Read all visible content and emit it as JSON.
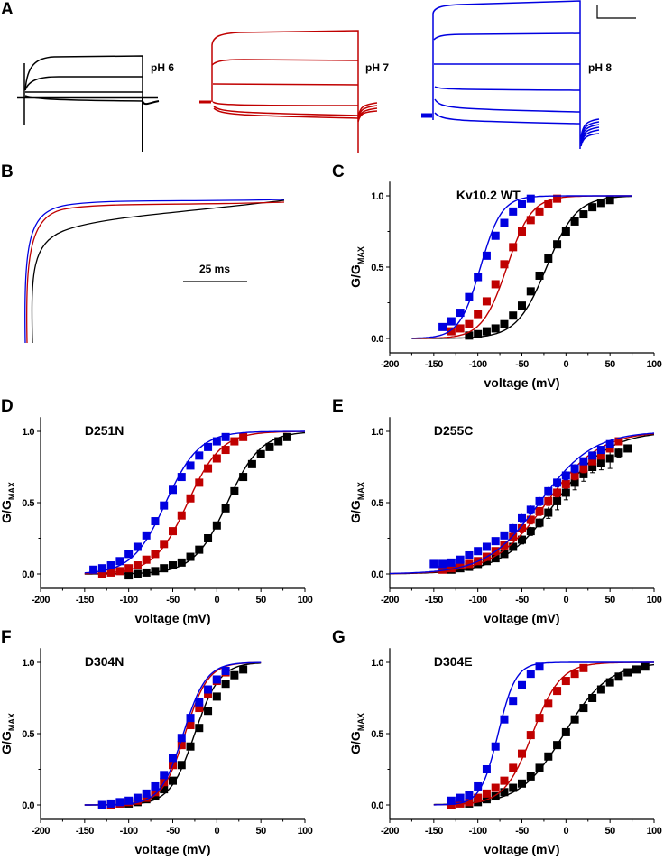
{
  "colors": {
    "pH 6": "#000000",
    "pH 7": "#c00000",
    "pH 8": "#0000e0"
  },
  "panel_a": {
    "label": "A",
    "traces": [
      {
        "label": "pH 6",
        "color": "#000000"
      },
      {
        "label": "pH 7",
        "color": "#c00000"
      },
      {
        "label": "pH 8",
        "color": "#0000e0"
      }
    ],
    "scale_bar": true
  },
  "panel_b": {
    "label": "B",
    "scale_label": "25 ms"
  },
  "chart_data": [
    {
      "panel": "C",
      "type": "scatter",
      "title": "Kv10.2 WT",
      "xlabel": "voltage (mV)",
      "ylabel": "G/GMAX",
      "xlim": [
        -200,
        100
      ],
      "ylim": [
        -0.1,
        1.1
      ],
      "xticks": [
        -200,
        -150,
        -100,
        -50,
        0,
        50,
        100
      ],
      "yticks": [
        0.0,
        0.5,
        1.0
      ],
      "fit_range": [
        -175,
        75
      ],
      "series": [
        {
          "name": "pH 6",
          "color": "#000000",
          "v_half": -22,
          "slope": 17,
          "x": [
            -110,
            -100,
            -90,
            -80,
            -70,
            -60,
            -50,
            -40,
            -30,
            -20,
            -10,
            0,
            10,
            20,
            30,
            40,
            50
          ],
          "y": [
            0.02,
            0.03,
            0.05,
            0.07,
            0.1,
            0.16,
            0.23,
            0.33,
            0.44,
            0.56,
            0.66,
            0.75,
            0.82,
            0.87,
            0.92,
            0.95,
            0.97
          ]
        },
        {
          "name": "pH 7",
          "color": "#c00000",
          "v_half": -67,
          "slope": 14,
          "x": [
            -130,
            -120,
            -110,
            -100,
            -90,
            -80,
            -70,
            -60,
            -50,
            -40,
            -30,
            -20,
            -10
          ],
          "y": [
            0.05,
            0.07,
            0.1,
            0.17,
            0.26,
            0.38,
            0.52,
            0.64,
            0.75,
            0.83,
            0.89,
            0.94,
            0.98
          ]
        },
        {
          "name": "pH 8",
          "color": "#0000e0",
          "v_half": -97,
          "slope": 12,
          "x": [
            -140,
            -130,
            -120,
            -110,
            -100,
            -90,
            -80,
            -70,
            -60,
            -50,
            -40
          ],
          "y": [
            0.08,
            0.12,
            0.18,
            0.29,
            0.43,
            0.58,
            0.72,
            0.81,
            0.89,
            0.94,
            0.98
          ]
        }
      ]
    },
    {
      "panel": "D",
      "type": "scatter",
      "title": "D251N",
      "xlabel": "voltage (mV)",
      "ylabel": "G/GMAX",
      "xlim": [
        -200,
        100
      ],
      "ylim": [
        -0.1,
        1.1
      ],
      "xticks": [
        -200,
        -150,
        -100,
        -50,
        0,
        50,
        100
      ],
      "yticks": [
        0.0,
        0.5,
        1.0
      ],
      "fit_range": [
        -150,
        100
      ],
      "series": [
        {
          "name": "pH 6",
          "color": "#000000",
          "v_half": 12,
          "slope": 19,
          "x": [
            -100,
            -90,
            -80,
            -70,
            -60,
            -50,
            -40,
            -30,
            -20,
            -10,
            0,
            10,
            20,
            30,
            40,
            50,
            60,
            70,
            80
          ],
          "y": [
            -0.01,
            0.0,
            0.01,
            0.02,
            0.04,
            0.06,
            0.08,
            0.12,
            0.17,
            0.25,
            0.34,
            0.46,
            0.58,
            0.68,
            0.77,
            0.84,
            0.89,
            0.93,
            0.96
          ]
        },
        {
          "name": "pH 7",
          "color": "#c00000",
          "v_half": -33,
          "slope": 19,
          "x": [
            -130,
            -120,
            -110,
            -100,
            -90,
            -80,
            -70,
            -60,
            -50,
            -40,
            -30,
            -20,
            -10,
            0,
            10,
            20,
            30
          ],
          "y": [
            0.0,
            0.01,
            0.02,
            0.04,
            0.06,
            0.1,
            0.14,
            0.21,
            0.3,
            0.41,
            0.53,
            0.64,
            0.74,
            0.81,
            0.87,
            0.93,
            0.96
          ]
        },
        {
          "name": "pH 8",
          "color": "#0000e0",
          "v_half": -58,
          "slope": 19,
          "x": [
            -140,
            -130,
            -120,
            -110,
            -100,
            -90,
            -80,
            -70,
            -60,
            -50,
            -40,
            -30,
            -20,
            -10,
            0,
            10
          ],
          "y": [
            0.03,
            0.04,
            0.06,
            0.09,
            0.14,
            0.19,
            0.27,
            0.37,
            0.48,
            0.59,
            0.68,
            0.76,
            0.83,
            0.89,
            0.93,
            0.96
          ]
        }
      ]
    },
    {
      "panel": "E",
      "type": "scatter",
      "title": "D255C",
      "xlabel": "voltage (mV)",
      "ylabel": "G/GMAX",
      "xlim": [
        -200,
        100
      ],
      "ylim": [
        -0.1,
        1.1
      ],
      "xticks": [
        -200,
        -150,
        -100,
        -50,
        0,
        50,
        100
      ],
      "yticks": [
        0.0,
        0.5,
        1.0
      ],
      "fit_range": [
        -200,
        100
      ],
      "error_bars": true,
      "series": [
        {
          "name": "pH 6",
          "color": "#000000",
          "v_half": -12,
          "slope": 30,
          "x": [
            -130,
            -120,
            -110,
            -100,
            -90,
            -80,
            -70,
            -60,
            -50,
            -40,
            -30,
            -20,
            -10,
            0,
            10,
            20,
            30,
            40,
            50,
            60,
            70
          ],
          "y": [
            0.03,
            0.04,
            0.05,
            0.07,
            0.09,
            0.11,
            0.14,
            0.19,
            0.24,
            0.3,
            0.36,
            0.43,
            0.51,
            0.57,
            0.64,
            0.7,
            0.75,
            0.78,
            0.81,
            0.85,
            0.88
          ],
          "err": [
            0.01,
            0.01,
            0.01,
            0.01,
            0.02,
            0.02,
            0.02,
            0.02,
            0.03,
            0.03,
            0.03,
            0.04,
            0.06,
            0.05,
            0.05,
            0.05,
            0.04,
            0.05,
            0.07,
            0.03,
            0.02
          ]
        },
        {
          "name": "pH 7",
          "color": "#c00000",
          "v_half": -22,
          "slope": 30,
          "x": [
            -140,
            -130,
            -120,
            -110,
            -100,
            -90,
            -80,
            -70,
            -60,
            -50,
            -40,
            -30,
            -20,
            -10,
            0,
            10,
            20,
            30,
            40,
            50,
            60
          ],
          "y": [
            0.03,
            0.04,
            0.06,
            0.07,
            0.09,
            0.12,
            0.16,
            0.2,
            0.26,
            0.32,
            0.38,
            0.44,
            0.51,
            0.57,
            0.63,
            0.69,
            0.74,
            0.79,
            0.83,
            0.88,
            0.93
          ],
          "err": [
            0.01,
            0.01,
            0.01,
            0.01,
            0.02,
            0.02,
            0.02,
            0.02,
            0.02,
            0.03,
            0.03,
            0.03,
            0.03,
            0.03,
            0.03,
            0.03,
            0.03,
            0.02,
            0.02,
            0.02,
            0.02
          ]
        },
        {
          "name": "pH 8",
          "color": "#0000e0",
          "v_half": -30,
          "slope": 30,
          "x": [
            -150,
            -140,
            -130,
            -120,
            -110,
            -100,
            -90,
            -80,
            -70,
            -60,
            -50,
            -40,
            -30,
            -20,
            -10,
            0,
            10,
            20,
            30,
            40,
            50
          ],
          "y": [
            0.07,
            0.07,
            0.08,
            0.1,
            0.13,
            0.16,
            0.19,
            0.23,
            0.27,
            0.32,
            0.39,
            0.45,
            0.51,
            0.58,
            0.64,
            0.69,
            0.74,
            0.79,
            0.83,
            0.87,
            0.91
          ],
          "err": [
            0.02,
            0.02,
            0.02,
            0.02,
            0.02,
            0.02,
            0.02,
            0.02,
            0.02,
            0.03,
            0.03,
            0.03,
            0.03,
            0.03,
            0.03,
            0.03,
            0.03,
            0.02,
            0.02,
            0.02,
            0.02
          ]
        }
      ]
    },
    {
      "panel": "F",
      "type": "scatter",
      "title": "D304N",
      "xlabel": "voltage (mV)",
      "ylabel": "G/GMAX",
      "xlim": [
        -200,
        100
      ],
      "ylim": [
        -0.1,
        1.1
      ],
      "xticks": [
        -200,
        -150,
        -100,
        -50,
        0,
        50,
        100
      ],
      "yticks": [
        0.0,
        0.5,
        1.0
      ],
      "fit_range": [
        -150,
        50
      ],
      "series": [
        {
          "name": "pH 6",
          "color": "#000000",
          "v_half": -25,
          "slope": 14,
          "x": [
            -130,
            -120,
            -110,
            -100,
            -90,
            -80,
            -70,
            -60,
            -50,
            -40,
            -30,
            -20,
            -10,
            0,
            10,
            20,
            30
          ],
          "y": [
            0.0,
            0.0,
            0.01,
            0.01,
            0.02,
            0.04,
            0.06,
            0.11,
            0.17,
            0.28,
            0.41,
            0.54,
            0.66,
            0.76,
            0.85,
            0.91,
            0.95
          ]
        },
        {
          "name": "pH 7",
          "color": "#c00000",
          "v_half": -36,
          "slope": 13,
          "x": [
            -130,
            -120,
            -110,
            -100,
            -90,
            -80,
            -70,
            -60,
            -50,
            -40,
            -30,
            -20,
            -10,
            0,
            10
          ],
          "y": [
            0.0,
            0.0,
            0.01,
            0.02,
            0.03,
            0.05,
            0.09,
            0.16,
            0.28,
            0.42,
            0.56,
            0.68,
            0.78,
            0.87,
            0.93
          ]
        },
        {
          "name": "pH 8",
          "color": "#0000e0",
          "v_half": -38,
          "slope": 13,
          "x": [
            -130,
            -120,
            -110,
            -100,
            -90,
            -80,
            -70,
            -60,
            -50,
            -40,
            -30,
            -20,
            -10,
            0,
            10
          ],
          "y": [
            0.0,
            0.01,
            0.02,
            0.03,
            0.05,
            0.08,
            0.13,
            0.21,
            0.33,
            0.47,
            0.61,
            0.72,
            0.81,
            0.88,
            0.94
          ]
        }
      ]
    },
    {
      "panel": "G",
      "type": "scatter",
      "title": "D304E",
      "xlabel": "voltage (mV)",
      "ylabel": "G/GMAX",
      "xlim": [
        -200,
        100
      ],
      "ylim": [
        -0.1,
        1.1
      ],
      "xticks": [
        -200,
        -150,
        -100,
        -50,
        0,
        50,
        100
      ],
      "yticks": [
        0.0,
        0.5,
        1.0
      ],
      "fit_range": [
        -150,
        100
      ],
      "series": [
        {
          "name": "pH 6",
          "color": "#000000",
          "v_half": -2,
          "slope": 25,
          "x": [
            -110,
            -100,
            -90,
            -80,
            -70,
            -60,
            -50,
            -40,
            -30,
            -20,
            -10,
            0,
            10,
            20,
            30,
            40,
            50,
            60,
            70,
            80,
            90
          ],
          "y": [
            0.01,
            0.02,
            0.04,
            0.06,
            0.09,
            0.12,
            0.15,
            0.2,
            0.26,
            0.34,
            0.42,
            0.51,
            0.6,
            0.68,
            0.75,
            0.81,
            0.86,
            0.9,
            0.93,
            0.95,
            0.97
          ]
        },
        {
          "name": "pH 7",
          "color": "#c00000",
          "v_half": -38,
          "slope": 16,
          "x": [
            -130,
            -120,
            -110,
            -100,
            -90,
            -80,
            -70,
            -60,
            -50,
            -40,
            -30,
            -20,
            -10,
            0,
            10,
            20
          ],
          "y": [
            0.0,
            0.01,
            0.02,
            0.05,
            0.08,
            0.12,
            0.17,
            0.26,
            0.36,
            0.49,
            0.61,
            0.71,
            0.8,
            0.87,
            0.92,
            0.96
          ]
        },
        {
          "name": "pH 8",
          "color": "#0000e0",
          "v_half": -77,
          "slope": 10,
          "x": [
            -130,
            -120,
            -110,
            -100,
            -90,
            -80,
            -70,
            -60,
            -50,
            -40,
            -30
          ],
          "y": [
            0.03,
            0.05,
            0.07,
            0.13,
            0.25,
            0.41,
            0.6,
            0.73,
            0.84,
            0.92,
            0.97
          ]
        }
      ]
    }
  ]
}
